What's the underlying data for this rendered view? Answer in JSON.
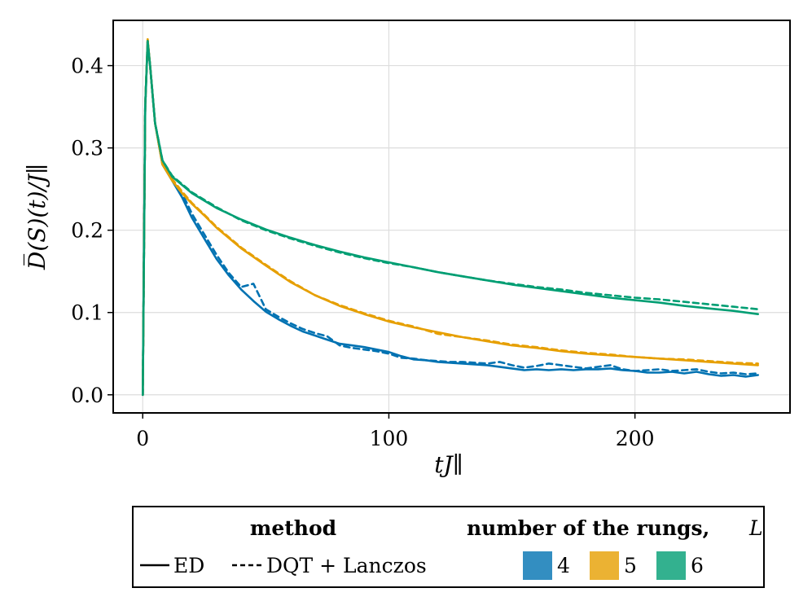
{
  "chart_data": {
    "type": "line",
    "title": "",
    "xlabel": "tJ∥",
    "ylabel": "D̅(S)(t)/J∥",
    "xlim": [
      -12,
      263
    ],
    "ylim": [
      -0.022,
      0.455
    ],
    "xticks": [
      0,
      100,
      200
    ],
    "xtick_labels": [
      "0",
      "100",
      "200"
    ],
    "yticks": [
      0.0,
      0.1,
      0.2,
      0.3,
      0.4
    ],
    "ytick_labels": [
      "0.0",
      "0.1",
      "0.2",
      "0.3",
      "0.4"
    ],
    "grid": true,
    "legend_position": "bottom",
    "legend": {
      "method_title": "method",
      "method_entries": [
        {
          "label": "ED",
          "style": "solid"
        },
        {
          "label": "DQT + Lanczos",
          "style": "dashed"
        }
      ],
      "rungs_title": "number of the rungs,",
      "rungs_symbol": "L",
      "rungs_entries": [
        {
          "label": "4",
          "color": "#0072b2"
        },
        {
          "label": "5",
          "color": "#e69f00"
        },
        {
          "label": "6",
          "color": "#009e73"
        }
      ]
    },
    "series": [
      {
        "name": "L=4 ED",
        "L": "4",
        "method": "ED",
        "color": "#0072b2",
        "dash": false,
        "x": [
          0,
          1,
          2,
          3,
          5,
          8,
          12,
          16,
          20,
          25,
          30,
          35,
          40,
          45,
          50,
          55,
          60,
          65,
          70,
          75,
          80,
          85,
          90,
          95,
          100,
          105,
          110,
          115,
          120,
          125,
          130,
          135,
          140,
          145,
          150,
          155,
          160,
          165,
          170,
          175,
          180,
          185,
          190,
          195,
          200,
          205,
          210,
          215,
          220,
          225,
          230,
          235,
          240,
          245,
          250
        ],
        "y": [
          0.0,
          0.35,
          0.43,
          0.4,
          0.33,
          0.28,
          0.26,
          0.24,
          0.215,
          0.19,
          0.165,
          0.145,
          0.128,
          0.114,
          0.101,
          0.092,
          0.084,
          0.077,
          0.072,
          0.067,
          0.062,
          0.06,
          0.058,
          0.055,
          0.052,
          0.047,
          0.043,
          0.042,
          0.04,
          0.039,
          0.038,
          0.037,
          0.036,
          0.034,
          0.032,
          0.03,
          0.031,
          0.03,
          0.031,
          0.03,
          0.031,
          0.031,
          0.032,
          0.03,
          0.029,
          0.027,
          0.027,
          0.028,
          0.026,
          0.028,
          0.025,
          0.023,
          0.024,
          0.022,
          0.024
        ]
      },
      {
        "name": "L=4 DQT + Lanczos",
        "L": "4",
        "method": "DQT + Lanczos",
        "color": "#0072b2",
        "dash": true,
        "x": [
          0,
          1,
          2,
          3,
          5,
          8,
          12,
          16,
          20,
          25,
          30,
          35,
          40,
          45,
          50,
          55,
          60,
          65,
          70,
          75,
          80,
          85,
          90,
          95,
          100,
          105,
          110,
          115,
          120,
          125,
          130,
          135,
          140,
          145,
          150,
          155,
          160,
          165,
          170,
          175,
          180,
          185,
          190,
          195,
          200,
          205,
          210,
          215,
          220,
          225,
          230,
          235,
          240,
          245,
          250
        ],
        "y": [
          0.0,
          0.35,
          0.43,
          0.4,
          0.33,
          0.285,
          0.26,
          0.245,
          0.22,
          0.195,
          0.17,
          0.148,
          0.131,
          0.135,
          0.104,
          0.095,
          0.087,
          0.08,
          0.075,
          0.071,
          0.06,
          0.057,
          0.055,
          0.053,
          0.05,
          0.045,
          0.044,
          0.042,
          0.041,
          0.04,
          0.04,
          0.039,
          0.038,
          0.04,
          0.036,
          0.033,
          0.035,
          0.038,
          0.036,
          0.034,
          0.032,
          0.034,
          0.036,
          0.031,
          0.029,
          0.03,
          0.031,
          0.029,
          0.03,
          0.031,
          0.028,
          0.026,
          0.027,
          0.025,
          0.026
        ]
      },
      {
        "name": "L=5 ED",
        "L": "5",
        "method": "ED",
        "color": "#e69f00",
        "dash": false,
        "x": [
          0,
          1,
          2,
          3,
          5,
          8,
          12,
          16,
          20,
          25,
          30,
          40,
          50,
          60,
          70,
          80,
          90,
          100,
          110,
          120,
          130,
          140,
          150,
          160,
          170,
          180,
          190,
          200,
          210,
          220,
          230,
          240,
          250
        ],
        "y": [
          0.0,
          0.35,
          0.432,
          0.4,
          0.33,
          0.28,
          0.26,
          0.245,
          0.232,
          0.218,
          0.203,
          0.178,
          0.157,
          0.137,
          0.121,
          0.108,
          0.098,
          0.089,
          0.082,
          0.076,
          0.07,
          0.065,
          0.06,
          0.057,
          0.053,
          0.05,
          0.048,
          0.046,
          0.044,
          0.042,
          0.04,
          0.038,
          0.036
        ]
      },
      {
        "name": "L=5 DQT + Lanczos",
        "L": "5",
        "method": "DQT + Lanczos",
        "color": "#e69f00",
        "dash": true,
        "x": [
          0,
          1,
          2,
          3,
          5,
          8,
          12,
          16,
          20,
          25,
          30,
          40,
          50,
          60,
          70,
          80,
          90,
          100,
          110,
          120,
          130,
          140,
          150,
          160,
          170,
          180,
          190,
          200,
          210,
          220,
          230,
          240,
          250
        ],
        "y": [
          0.0,
          0.35,
          0.432,
          0.4,
          0.33,
          0.28,
          0.262,
          0.247,
          0.233,
          0.219,
          0.204,
          0.179,
          0.158,
          0.138,
          0.121,
          0.109,
          0.099,
          0.09,
          0.083,
          0.074,
          0.07,
          0.066,
          0.061,
          0.058,
          0.054,
          0.051,
          0.049,
          0.046,
          0.044,
          0.043,
          0.041,
          0.039,
          0.038
        ]
      },
      {
        "name": "L=6 ED",
        "L": "6",
        "method": "ED",
        "color": "#009e73",
        "dash": false,
        "x": [
          0,
          1,
          2,
          3,
          5,
          8,
          12,
          16,
          20,
          30,
          40,
          50,
          60,
          70,
          80,
          90,
          100,
          110,
          120,
          130,
          140,
          150,
          160,
          170,
          180,
          190,
          200,
          210,
          220,
          230,
          240,
          250
        ],
        "y": [
          0.0,
          0.35,
          0.43,
          0.4,
          0.33,
          0.285,
          0.265,
          0.255,
          0.245,
          0.227,
          0.213,
          0.201,
          0.191,
          0.182,
          0.174,
          0.167,
          0.161,
          0.155,
          0.149,
          0.144,
          0.139,
          0.134,
          0.13,
          0.126,
          0.122,
          0.118,
          0.115,
          0.112,
          0.108,
          0.105,
          0.102,
          0.098
        ]
      },
      {
        "name": "L=6 DQT + Lanczos",
        "L": "6",
        "method": "DQT + Lanczos",
        "color": "#009e73",
        "dash": true,
        "x": [
          0,
          1,
          2,
          3,
          5,
          8,
          12,
          16,
          20,
          30,
          40,
          50,
          60,
          70,
          80,
          90,
          100,
          110,
          120,
          130,
          140,
          150,
          160,
          170,
          180,
          190,
          200,
          210,
          220,
          230,
          240,
          250
        ],
        "y": [
          0.0,
          0.35,
          0.43,
          0.4,
          0.33,
          0.285,
          0.266,
          0.256,
          0.246,
          0.228,
          0.212,
          0.2,
          0.19,
          0.181,
          0.173,
          0.166,
          0.16,
          0.155,
          0.149,
          0.144,
          0.139,
          0.135,
          0.131,
          0.128,
          0.124,
          0.121,
          0.118,
          0.116,
          0.113,
          0.11,
          0.107,
          0.104
        ]
      }
    ]
  }
}
